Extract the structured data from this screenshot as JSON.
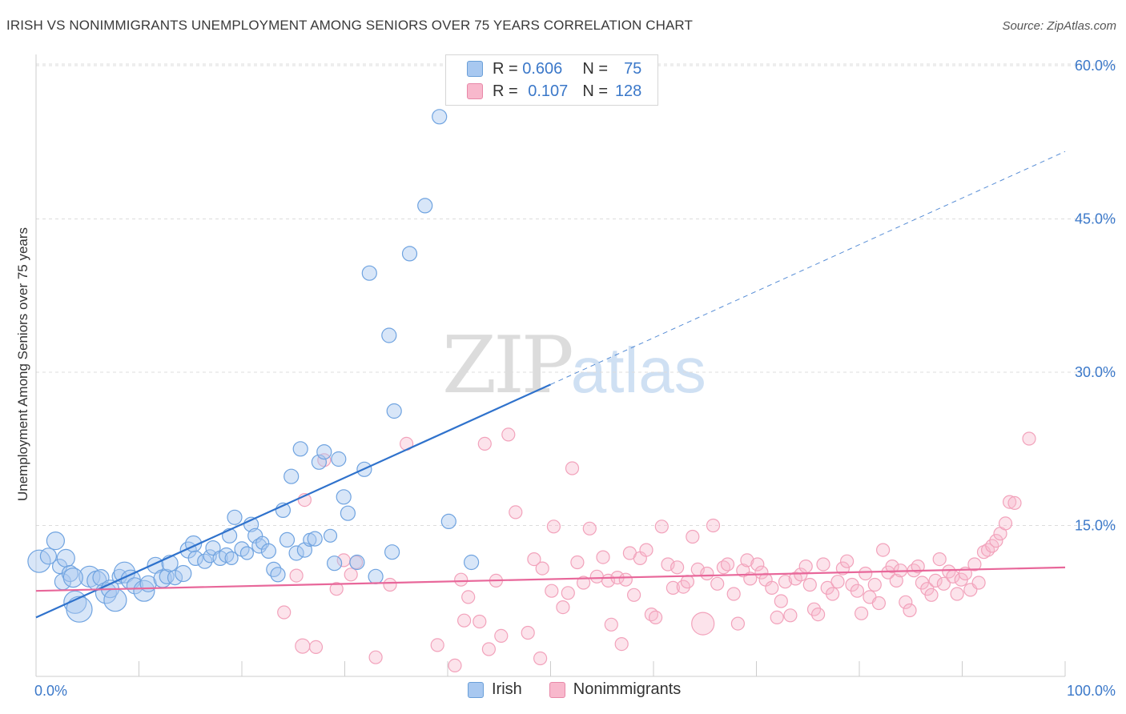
{
  "header": {
    "title": "IRISH VS NONIMMIGRANTS UNEMPLOYMENT AMONG SENIORS OVER 75 YEARS CORRELATION CHART",
    "source": "Source: ZipAtlas.com"
  },
  "watermark": {
    "zip": "ZIP",
    "atlas": "atlas"
  },
  "legend": {
    "r_label": "R =",
    "n_label": "N =",
    "irish": {
      "name": "Irish",
      "r": "0.606",
      "n": "75",
      "color": "#a8c8f0",
      "stroke": "#6a9fd8"
    },
    "nonimmigrants": {
      "name": "Nonimmigrants",
      "r": "0.107",
      "n": "128",
      "color": "#f8b8cc",
      "stroke": "#e888a8"
    }
  },
  "chart_data": {
    "type": "scatter",
    "ylabel": "Unemployment Among Seniors over 75 years",
    "xlim": [
      0,
      100
    ],
    "ylim": [
      0,
      60
    ],
    "x_tick_labels": [
      "0.0%",
      "100.0%"
    ],
    "y_ticks": [
      15,
      30,
      45,
      60
    ],
    "y_tick_labels": [
      "15.0%",
      "30.0%",
      "45.0%",
      "60.0%"
    ],
    "grid": true,
    "series": [
      {
        "name": "Irish",
        "color": "#6fa3e0",
        "line_color": "#2f72cc",
        "trend": {
          "x0": 0,
          "y0": 6.0,
          "x1": 50,
          "y1": 28.8,
          "x_dash_end": 100,
          "y_dash_end": 51.6
        },
        "points": [
          [
            0.3,
            11.5,
            14
          ],
          [
            1.2,
            12.0,
            10
          ],
          [
            1.9,
            13.5,
            11
          ],
          [
            2.3,
            11.0,
            9
          ],
          [
            2.6,
            9.5,
            10
          ],
          [
            2.9,
            11.8,
            11
          ],
          [
            3.3,
            10.3,
            10
          ],
          [
            3.8,
            7.5,
            14
          ],
          [
            4.2,
            6.8,
            16
          ],
          [
            5.2,
            10.0,
            13
          ],
          [
            5.9,
            9.6,
            12
          ],
          [
            6.3,
            9.9,
            10
          ],
          [
            6.8,
            8.4,
            13
          ],
          [
            7.2,
            8.8,
            11
          ],
          [
            7.7,
            7.7,
            14
          ],
          [
            8.1,
            10.0,
            9
          ],
          [
            8.6,
            10.4,
            13
          ],
          [
            9.2,
            9.7,
            12
          ],
          [
            9.6,
            9.1,
            10
          ],
          [
            10.5,
            8.6,
            13
          ],
          [
            10.9,
            9.3,
            10
          ],
          [
            11.6,
            11.1,
            10
          ],
          [
            12.3,
            9.8,
            11
          ],
          [
            12.7,
            10.0,
            9
          ],
          [
            13.0,
            11.3,
            10
          ],
          [
            13.5,
            9.9,
            9
          ],
          [
            14.3,
            10.3,
            10
          ],
          [
            14.8,
            12.6,
            10
          ],
          [
            15.3,
            13.2,
            10
          ],
          [
            15.5,
            11.8,
            9
          ],
          [
            16.4,
            11.5,
            9
          ],
          [
            16.9,
            12.0,
            8
          ],
          [
            17.2,
            12.8,
            9
          ],
          [
            17.9,
            11.8,
            9
          ],
          [
            18.5,
            12.1,
            9
          ],
          [
            18.8,
            14.0,
            9
          ],
          [
            19.0,
            11.8,
            8
          ],
          [
            19.3,
            15.8,
            9
          ],
          [
            20.0,
            12.7,
            9
          ],
          [
            20.5,
            12.3,
            8
          ],
          [
            20.9,
            15.1,
            9
          ],
          [
            21.3,
            14.0,
            9
          ],
          [
            21.7,
            13.0,
            9
          ],
          [
            22.0,
            13.3,
            8
          ],
          [
            22.6,
            12.5,
            9
          ],
          [
            23.1,
            10.7,
            9
          ],
          [
            23.5,
            10.2,
            9
          ],
          [
            24.0,
            16.5,
            9
          ],
          [
            24.4,
            13.6,
            9
          ],
          [
            24.8,
            19.8,
            9
          ],
          [
            25.3,
            12.3,
            9
          ],
          [
            25.7,
            22.5,
            9
          ],
          [
            26.1,
            12.6,
            9
          ],
          [
            26.6,
            13.6,
            8
          ],
          [
            27.1,
            13.7,
            9
          ],
          [
            27.5,
            21.2,
            9
          ],
          [
            28.0,
            22.2,
            9
          ],
          [
            28.6,
            14.0,
            8
          ],
          [
            29.0,
            11.3,
            9
          ],
          [
            29.4,
            21.5,
            9
          ],
          [
            29.9,
            17.8,
            9
          ],
          [
            30.3,
            16.2,
            9
          ],
          [
            31.2,
            11.4,
            9
          ],
          [
            31.9,
            20.5,
            9
          ],
          [
            32.4,
            39.7,
            9
          ],
          [
            33.0,
            10.0,
            9
          ],
          [
            34.3,
            33.6,
            9
          ],
          [
            34.6,
            12.4,
            9
          ],
          [
            34.8,
            26.2,
            9
          ],
          [
            36.3,
            41.6,
            9
          ],
          [
            37.8,
            46.3,
            9
          ],
          [
            39.2,
            55.0,
            9
          ],
          [
            40.1,
            15.4,
            9
          ],
          [
            42.3,
            11.4,
            9
          ],
          [
            3.6,
            9.9,
            12
          ]
        ]
      },
      {
        "name": "Nonimmigrants",
        "color": "#f2a2bb",
        "line_color": "#e8679a",
        "trend": {
          "x0": 0,
          "y0": 8.6,
          "x1": 100,
          "y1": 10.9
        },
        "points": [
          [
            24.1,
            6.5,
            8
          ],
          [
            25.3,
            10.1,
            8
          ],
          [
            25.9,
            3.2,
            9
          ],
          [
            26.1,
            17.5,
            8
          ],
          [
            27.2,
            3.1,
            8
          ],
          [
            28.0,
            21.4,
            8
          ],
          [
            29.2,
            8.8,
            8
          ],
          [
            29.9,
            11.6,
            8
          ],
          [
            30.6,
            10.2,
            8
          ],
          [
            31.1,
            11.4,
            8
          ],
          [
            33.0,
            2.1,
            8
          ],
          [
            34.4,
            9.2,
            8
          ],
          [
            36.0,
            23.0,
            8
          ],
          [
            39.0,
            3.3,
            8
          ],
          [
            40.7,
            1.3,
            8
          ],
          [
            41.3,
            9.7,
            8
          ],
          [
            41.6,
            5.7,
            8
          ],
          [
            42.0,
            8.0,
            8
          ],
          [
            43.1,
            5.6,
            8
          ],
          [
            43.6,
            23.0,
            8
          ],
          [
            44.0,
            2.9,
            8
          ],
          [
            44.7,
            9.6,
            8
          ],
          [
            45.2,
            4.2,
            8
          ],
          [
            45.9,
            23.9,
            8
          ],
          [
            46.6,
            16.3,
            8
          ],
          [
            47.8,
            4.5,
            8
          ],
          [
            48.4,
            11.7,
            8
          ],
          [
            49.0,
            2.0,
            8
          ],
          [
            49.2,
            10.8,
            8
          ],
          [
            50.1,
            8.6,
            8
          ],
          [
            50.3,
            14.9,
            8
          ],
          [
            51.2,
            7.0,
            8
          ],
          [
            51.7,
            8.4,
            8
          ],
          [
            52.1,
            20.6,
            8
          ],
          [
            52.6,
            11.4,
            8
          ],
          [
            53.2,
            9.4,
            8
          ],
          [
            53.8,
            14.7,
            8
          ],
          [
            54.5,
            10.0,
            8
          ],
          [
            55.1,
            11.9,
            8
          ],
          [
            55.6,
            9.6,
            8
          ],
          [
            55.9,
            5.3,
            8
          ],
          [
            56.5,
            9.9,
            8
          ],
          [
            56.9,
            3.4,
            8
          ],
          [
            57.3,
            9.7,
            8
          ],
          [
            57.7,
            12.3,
            8
          ],
          [
            58.1,
            8.2,
            8
          ],
          [
            58.7,
            11.8,
            8
          ],
          [
            59.3,
            12.6,
            8
          ],
          [
            59.8,
            6.3,
            8
          ],
          [
            60.2,
            6.0,
            8
          ],
          [
            60.8,
            14.9,
            8
          ],
          [
            61.4,
            11.2,
            8
          ],
          [
            61.9,
            8.9,
            8
          ],
          [
            62.3,
            10.9,
            8
          ],
          [
            62.9,
            9.0,
            8
          ],
          [
            63.3,
            9.5,
            8
          ],
          [
            63.8,
            13.9,
            8
          ],
          [
            64.3,
            10.7,
            8
          ],
          [
            64.8,
            5.4,
            14
          ],
          [
            65.2,
            10.3,
            8
          ],
          [
            65.8,
            15.0,
            8
          ],
          [
            66.2,
            9.3,
            8
          ],
          [
            66.8,
            10.9,
            8
          ],
          [
            67.2,
            11.2,
            8
          ],
          [
            67.8,
            8.3,
            8
          ],
          [
            68.2,
            5.4,
            8
          ],
          [
            68.7,
            10.6,
            8
          ],
          [
            69.1,
            11.6,
            8
          ],
          [
            69.4,
            9.8,
            8
          ],
          [
            70.1,
            11.2,
            8
          ],
          [
            70.5,
            10.4,
            8
          ],
          [
            70.9,
            9.7,
            8
          ],
          [
            71.5,
            8.9,
            8
          ],
          [
            72.0,
            6.0,
            8
          ],
          [
            72.4,
            7.6,
            8
          ],
          [
            72.8,
            9.5,
            8
          ],
          [
            73.3,
            6.2,
            8
          ],
          [
            73.8,
            9.8,
            8
          ],
          [
            74.3,
            10.2,
            8
          ],
          [
            74.8,
            11.0,
            8
          ],
          [
            75.2,
            9.2,
            8
          ],
          [
            75.6,
            6.8,
            8
          ],
          [
            76.0,
            6.3,
            8
          ],
          [
            76.5,
            11.2,
            8
          ],
          [
            76.9,
            8.9,
            8
          ],
          [
            77.4,
            8.3,
            8
          ],
          [
            77.9,
            9.5,
            8
          ],
          [
            78.4,
            10.8,
            8
          ],
          [
            78.8,
            11.5,
            8
          ],
          [
            79.3,
            9.2,
            8
          ],
          [
            79.8,
            8.6,
            8
          ],
          [
            80.2,
            6.4,
            8
          ],
          [
            80.6,
            10.3,
            8
          ],
          [
            81.0,
            8.0,
            8
          ],
          [
            81.5,
            9.2,
            8
          ],
          [
            81.9,
            7.4,
            8
          ],
          [
            82.3,
            12.6,
            8
          ],
          [
            82.8,
            10.4,
            8
          ],
          [
            83.2,
            11.0,
            8
          ],
          [
            83.6,
            9.6,
            8
          ],
          [
            84.0,
            10.6,
            8
          ],
          [
            84.5,
            7.5,
            8
          ],
          [
            84.9,
            6.7,
            8
          ],
          [
            85.3,
            10.6,
            8
          ],
          [
            85.7,
            11.0,
            8
          ],
          [
            86.1,
            9.4,
            8
          ],
          [
            86.6,
            8.8,
            8
          ],
          [
            87.0,
            8.2,
            8
          ],
          [
            87.4,
            9.6,
            8
          ],
          [
            87.8,
            11.7,
            8
          ],
          [
            88.2,
            9.3,
            8
          ],
          [
            88.7,
            10.5,
            8
          ],
          [
            89.1,
            10.0,
            8
          ],
          [
            89.5,
            8.3,
            8
          ],
          [
            89.9,
            9.7,
            8
          ],
          [
            90.3,
            10.3,
            8
          ],
          [
            90.8,
            8.7,
            8
          ],
          [
            91.2,
            11.2,
            8
          ],
          [
            91.6,
            9.4,
            8
          ],
          [
            92.1,
            12.4,
            8
          ],
          [
            92.5,
            12.6,
            8
          ],
          [
            92.9,
            13.0,
            8
          ],
          [
            93.3,
            13.5,
            8
          ],
          [
            93.7,
            14.2,
            8
          ],
          [
            94.2,
            15.2,
            8
          ],
          [
            94.6,
            17.3,
            8
          ],
          [
            95.1,
            17.2,
            8
          ],
          [
            96.5,
            23.5,
            8
          ]
        ]
      }
    ]
  }
}
